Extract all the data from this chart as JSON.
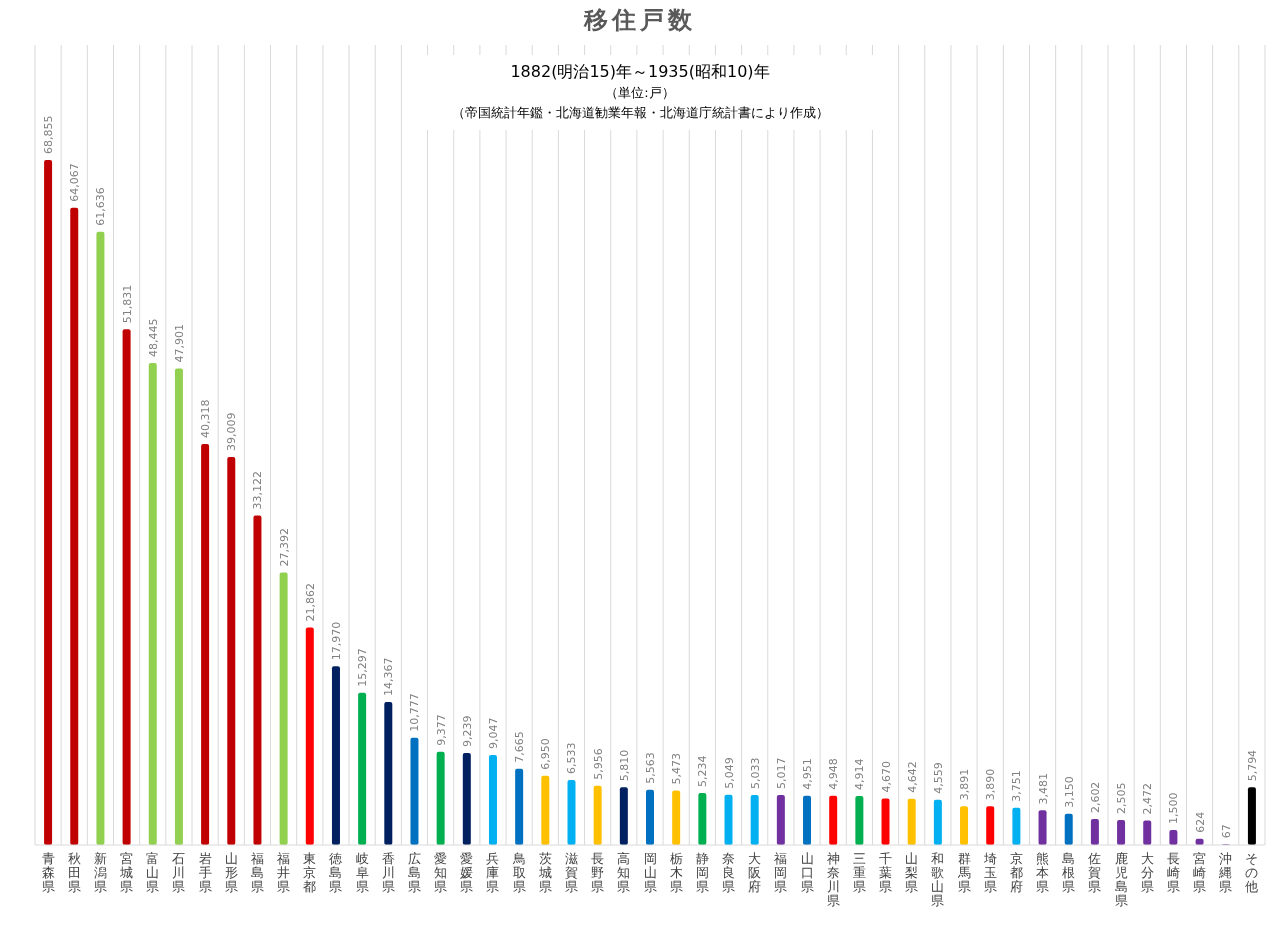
{
  "chart_data": {
    "type": "bar",
    "title": "移住戸数",
    "subtitle": "1882(明治15)年～1935(昭和10)年",
    "annotations": [
      "（単位:戸）",
      "（帝国統計年鑑・北海道勧業年報・北海道庁統計書により作成）"
    ],
    "categories": [
      "青森県",
      "秋田県",
      "新潟県",
      "宮城県",
      "富山県",
      "石川県",
      "岩手県",
      "山形県",
      "福島県",
      "福井県",
      "東京都",
      "徳島県",
      "岐阜県",
      "香川県",
      "広島県",
      "愛知県",
      "愛媛県",
      "兵庫県",
      "鳥取県",
      "茨城県",
      "滋賀県",
      "長野県",
      "高知県",
      "岡山県",
      "栃木県",
      "静岡県",
      "奈良県",
      "大阪府",
      "福岡県",
      "山口県",
      "神奈川県",
      "三重県",
      "千葉県",
      "山梨県",
      "和歌山県",
      "群馬県",
      "埼玉県",
      "京都府",
      "熊本県",
      "島根県",
      "佐賀県",
      "鹿児島県",
      "大分県",
      "長崎県",
      "宮崎県",
      "沖縄県",
      "その他"
    ],
    "values": [
      68855,
      64067,
      61636,
      51831,
      48445,
      47901,
      40318,
      39009,
      33122,
      27392,
      21862,
      17970,
      15297,
      14367,
      10777,
      9377,
      9239,
      9047,
      7665,
      6950,
      6533,
      5956,
      5810,
      5563,
      5473,
      5234,
      5049,
      5033,
      5017,
      4951,
      4948,
      4914,
      4670,
      4642,
      4559,
      3891,
      3890,
      3751,
      3481,
      3150,
      2602,
      2505,
      2472,
      1500,
      624,
      67,
      5794
    ],
    "colors": [
      "#c00000",
      "#c00000",
      "#92d050",
      "#c00000",
      "#92d050",
      "#92d050",
      "#c00000",
      "#c00000",
      "#c00000",
      "#92d050",
      "#ff0000",
      "#002060",
      "#00b050",
      "#002060",
      "#0070c0",
      "#00b050",
      "#002060",
      "#00b0f0",
      "#0070c0",
      "#ffc000",
      "#00b0f0",
      "#ffc000",
      "#002060",
      "#0070c0",
      "#ffc000",
      "#00b050",
      "#00b0f0",
      "#00b0f0",
      "#7030a0",
      "#0070c0",
      "#ff0000",
      "#00b050",
      "#ff0000",
      "#ffc000",
      "#00b0f0",
      "#ffc000",
      "#ff0000",
      "#00b0f0",
      "#7030a0",
      "#0070c0",
      "#7030a0",
      "#7030a0",
      "#7030a0",
      "#7030a0",
      "#7030a0",
      "#7030a0",
      "#000000"
    ],
    "value_labels": [
      "68,855",
      "64,067",
      "61,636",
      "51,831",
      "48,445",
      "47,901",
      "40,318",
      "39,009",
      "33,122",
      "27,392",
      "21,862",
      "17,970",
      "15,297",
      "14,367",
      "10,777",
      "9,377",
      "9,239",
      "9,047",
      "7,665",
      "6,950",
      "6,533",
      "5,956",
      "5,810",
      "5,563",
      "5,473",
      "5,234",
      "5,049",
      "5,033",
      "5,017",
      "4,951",
      "4,948",
      "4,914",
      "4,670",
      "4,642",
      "4,559",
      "3,891",
      "3,890",
      "3,751",
      "3,481",
      "3,150",
      "2,602",
      "2,505",
      "2,472",
      "1,500",
      "624",
      "67",
      "5,794"
    ],
    "grid": "x"
  }
}
